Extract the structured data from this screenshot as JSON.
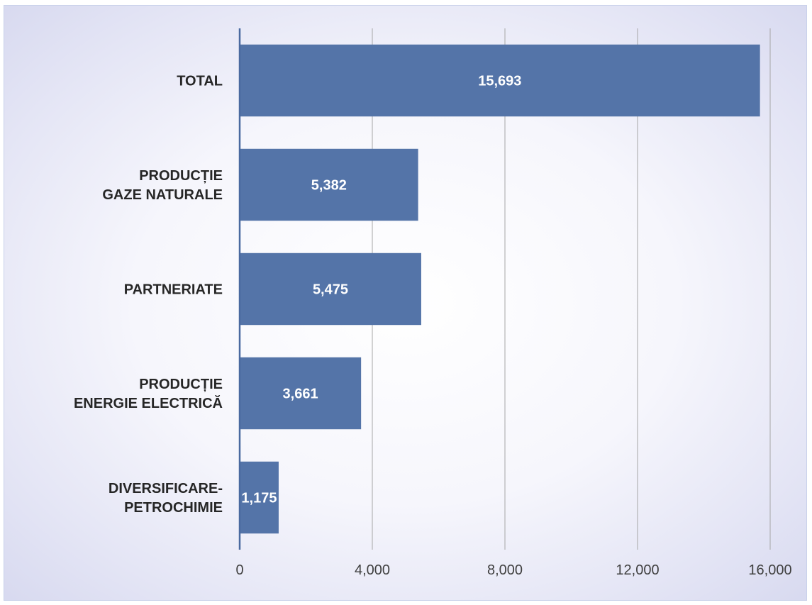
{
  "chart_data": {
    "type": "bar",
    "orientation": "horizontal",
    "categories": [
      [
        "TOTAL"
      ],
      [
        "PRODUCȚIE",
        "GAZE NATURALE"
      ],
      [
        "PARTNERIATE"
      ],
      [
        "PRODUCȚIE",
        "ENERGIE ELECTRICĂ"
      ],
      [
        "DIVERSIFICARE-",
        "PETROCHIMIE"
      ]
    ],
    "values": [
      15693,
      5382,
      5475,
      3661,
      1175
    ],
    "value_labels": [
      "15,693",
      "5,382",
      "5,475",
      "3,661",
      "1,175"
    ],
    "xlim": [
      0,
      16000
    ],
    "xticks": [
      0,
      4000,
      8000,
      12000,
      16000
    ],
    "xtick_labels": [
      "0",
      "4,000",
      "8,000",
      "12,000",
      "16,000"
    ],
    "grid": "vertical",
    "bar_color": "#5474a8",
    "title": "",
    "xlabel": "",
    "ylabel": ""
  }
}
